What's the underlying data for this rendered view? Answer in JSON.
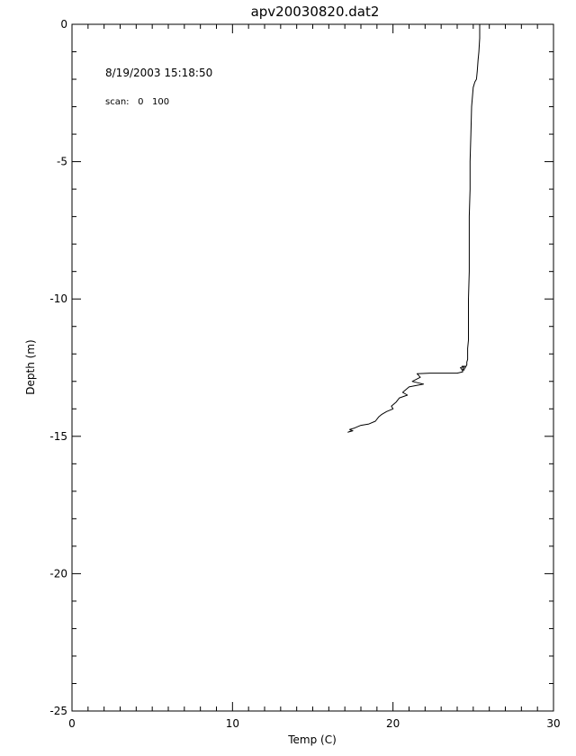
{
  "chart_data": {
    "type": "line",
    "title": "apv20030820.dat2",
    "xlabel": "Temp (C)",
    "ylabel": "Depth (m)",
    "xlim": [
      0,
      30
    ],
    "ylim": [
      -25,
      0
    ],
    "x_major_ticks": [
      0,
      10,
      20,
      30
    ],
    "x_tick_labels": [
      "0",
      "10",
      "20",
      "30"
    ],
    "y_major_ticks": [
      0,
      -5,
      -10,
      -15,
      -20,
      -25
    ],
    "y_tick_labels": [
      "0",
      "-5",
      "-10",
      "-15",
      "-20",
      "-25"
    ],
    "grid": false,
    "legend": "none",
    "annotations": {
      "datetime": "8/19/2003 15:18:50",
      "scan": "scan:   0   100"
    },
    "series": [
      {
        "color": "#000000",
        "x": [
          25.4,
          25.4,
          25.35,
          25.3,
          25.25,
          25.2,
          25.1,
          25.0,
          24.9,
          24.85,
          24.8,
          24.8,
          24.75,
          24.75,
          24.75,
          24.7,
          24.7,
          24.7,
          24.7,
          24.65,
          24.65,
          24.65,
          24.6,
          24.6,
          24.6,
          24.55,
          24.5,
          24.45,
          24.4,
          24.35,
          24.4,
          24.3,
          24.5,
          24.2,
          24.3,
          24.35,
          24.0,
          23.0,
          22.5,
          22.3,
          21.5,
          21.7,
          21.2,
          21.9,
          21.0,
          20.6,
          20.9,
          20.4,
          20.2,
          19.9,
          20.0,
          19.6,
          19.3,
          19.1,
          18.9,
          18.5,
          18.0,
          17.8,
          17.6,
          17.3,
          17.5,
          17.2,
          17.4
        ],
        "y": [
          0,
          -0.5,
          -1.0,
          -1.3,
          -1.7,
          -2.0,
          -2.1,
          -2.3,
          -3.0,
          -4.0,
          -5.0,
          -6.0,
          -7.0,
          -8.0,
          -9.0,
          -10.0,
          -10.5,
          -11.0,
          -11.5,
          -11.8,
          -12.0,
          -12.2,
          -12.3,
          -12.35,
          -12.4,
          -12.45,
          -12.5,
          -12.55,
          -12.6,
          -12.55,
          -12.5,
          -12.45,
          -12.45,
          -12.5,
          -12.58,
          -12.65,
          -12.7,
          -12.7,
          -12.7,
          -12.7,
          -12.72,
          -12.85,
          -13.0,
          -13.1,
          -13.2,
          -13.4,
          -13.5,
          -13.6,
          -13.75,
          -13.9,
          -14.0,
          -14.1,
          -14.2,
          -14.3,
          -14.45,
          -14.55,
          -14.6,
          -14.65,
          -14.7,
          -14.75,
          -14.8,
          -14.85,
          -14.8
        ]
      }
    ]
  }
}
